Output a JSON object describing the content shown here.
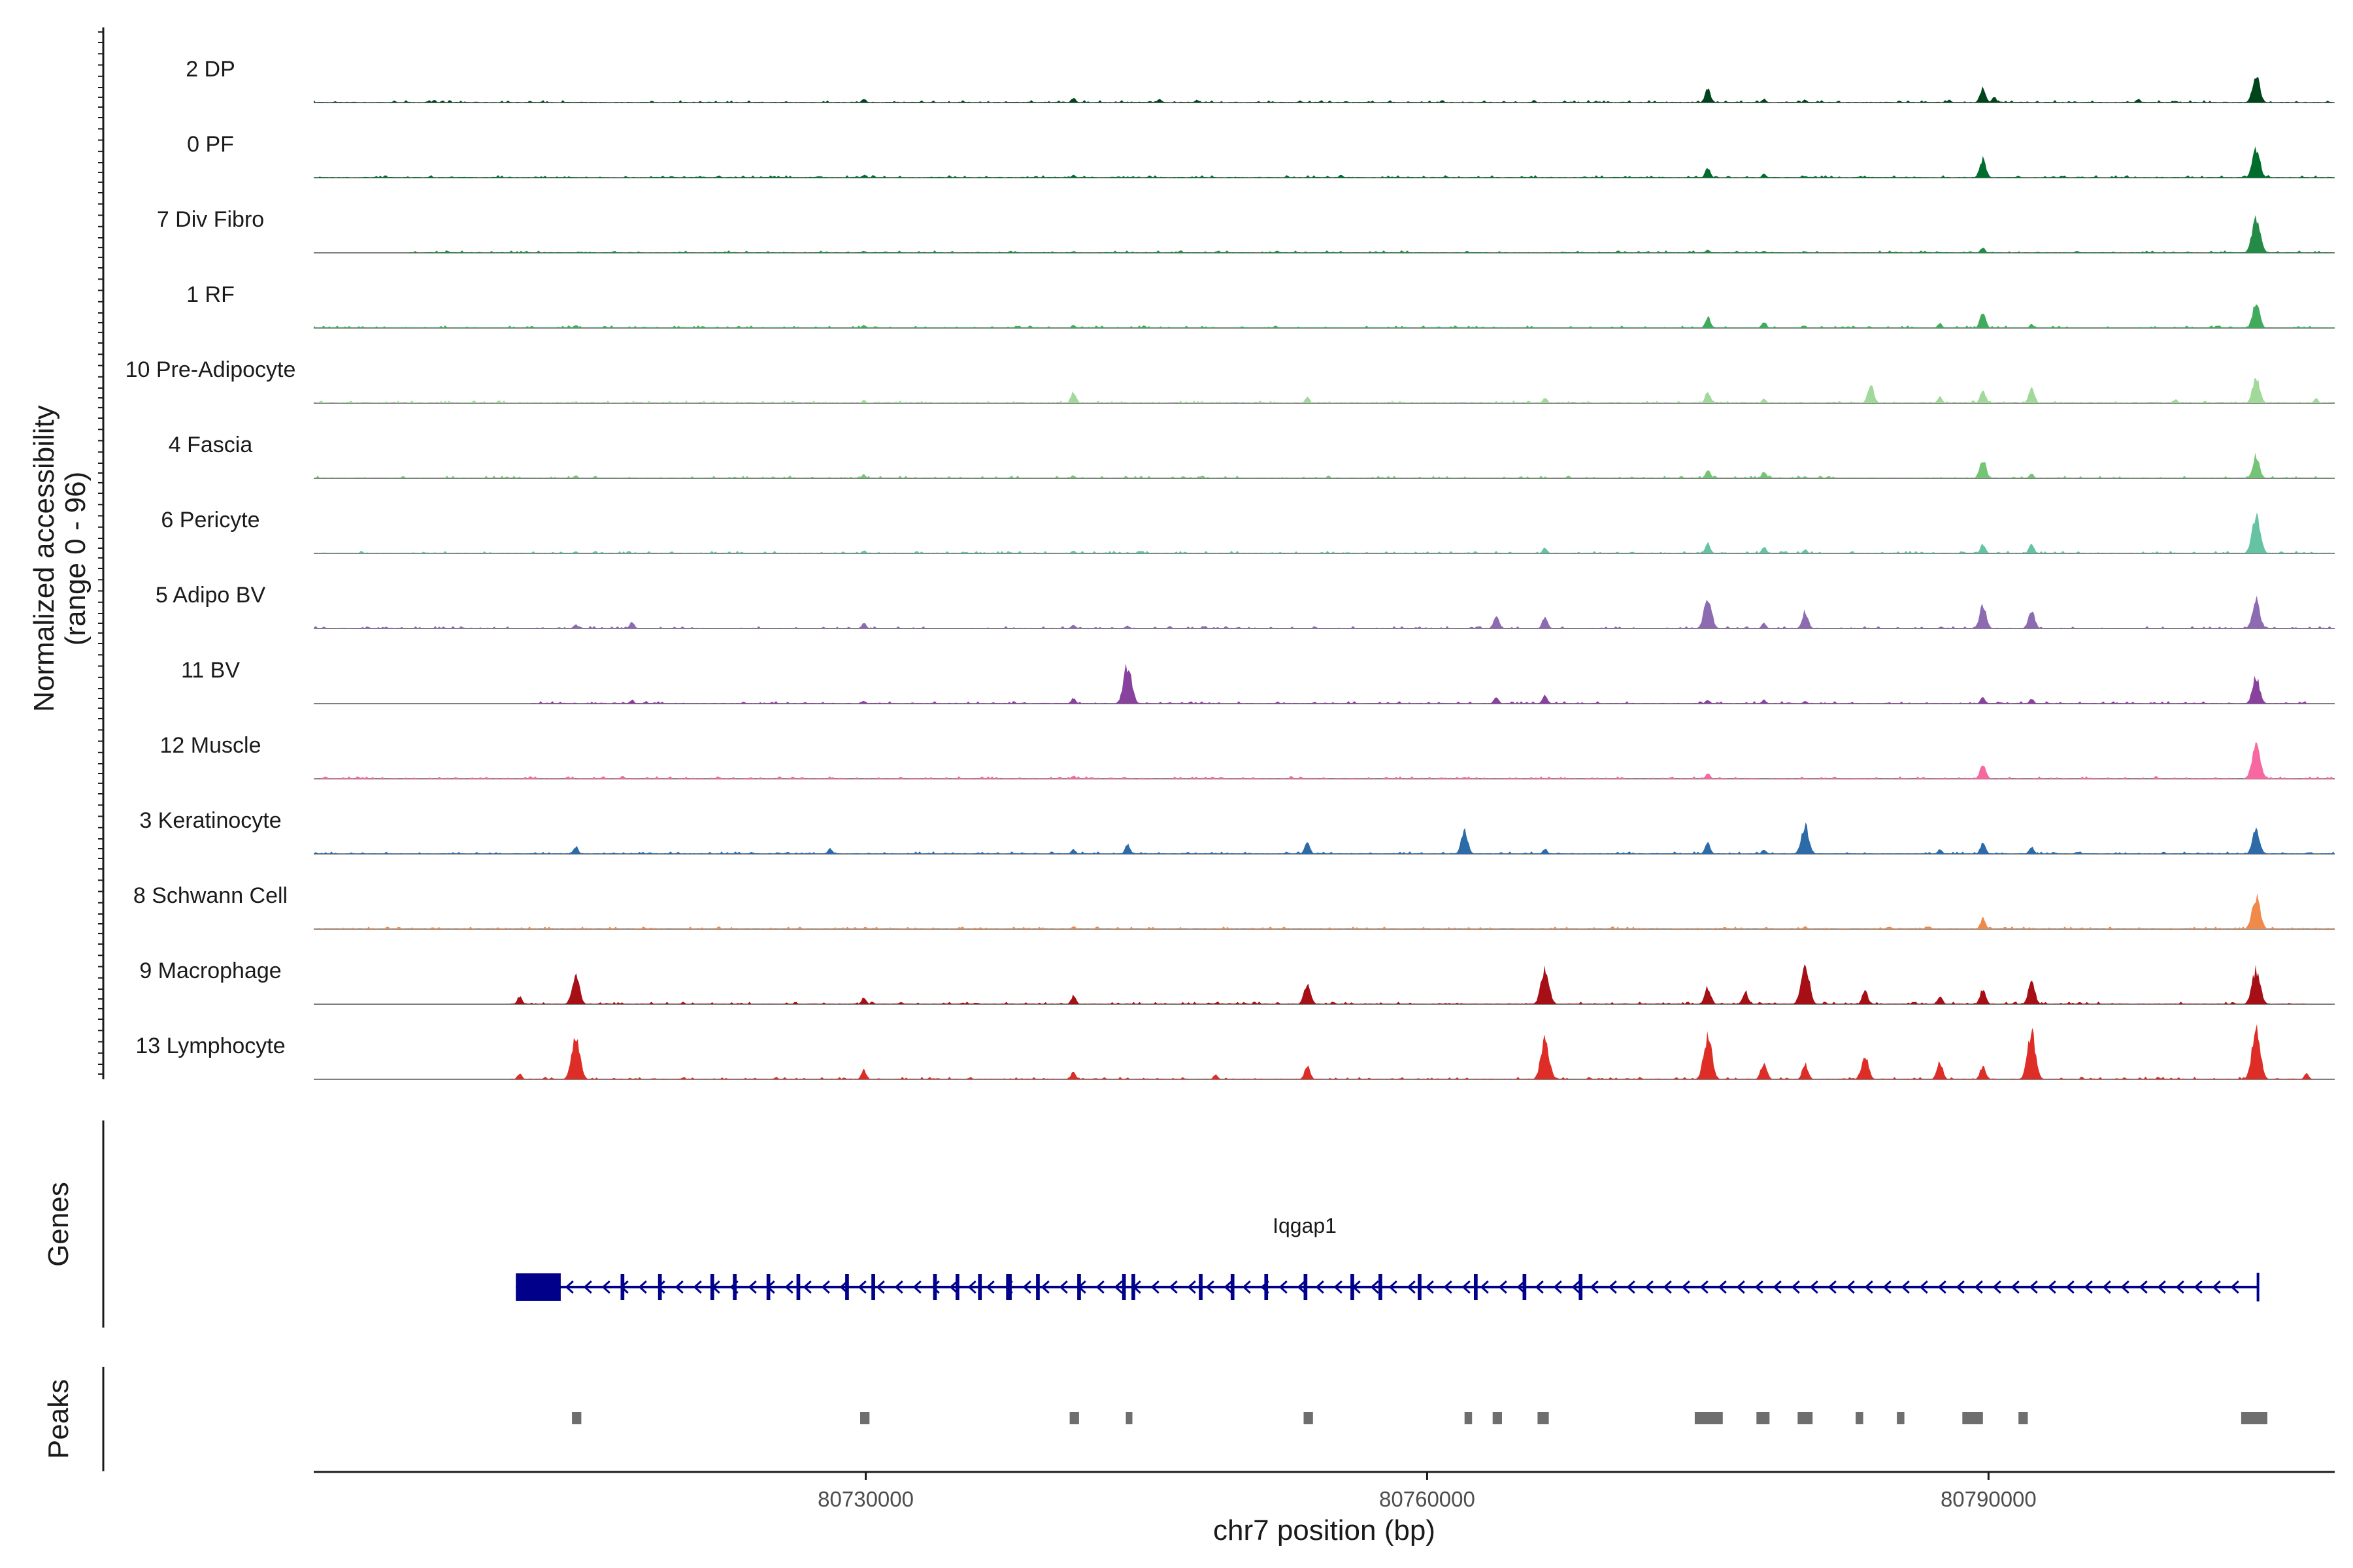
{
  "chart_data": {
    "type": "area",
    "title": "",
    "ylabel_line1": "Normalized accessibility",
    "ylabel_line2": "(range 0 - 96)",
    "ylim": [
      0,
      96
    ],
    "xlabel": "chr7 position (bp)",
    "xlim": [
      80700500,
      80808500
    ],
    "x_ticks": [
      80730000,
      80760000,
      80790000
    ],
    "x_tick_labels": [
      "80730000",
      "80760000",
      "80790000"
    ],
    "genes_label": "Genes",
    "peaks_label": "Peaks",
    "tracks": [
      {
        "name": "2 DP",
        "color": "#00441b",
        "start": 80700500,
        "end": 80808500,
        "peaks": [
          [
            80729900,
            4
          ],
          [
            80741100,
            5
          ],
          [
            80745700,
            4
          ],
          [
            80747700,
            3
          ],
          [
            80775000,
            14
          ],
          [
            80778000,
            4
          ],
          [
            80780200,
            3
          ],
          [
            80787900,
            3
          ],
          [
            80789700,
            16
          ],
          [
            80790300,
            6
          ],
          [
            80798000,
            4
          ],
          [
            80800000,
            2
          ],
          [
            80804300,
            28
          ]
        ]
      },
      {
        "name": "0 PF",
        "color": "#006d2c",
        "start": 80700500,
        "end": 80808500,
        "peaks": [
          [
            80729900,
            3
          ],
          [
            80741100,
            3
          ],
          [
            80755400,
            3
          ],
          [
            80775000,
            10
          ],
          [
            80778000,
            4
          ],
          [
            80780200,
            2
          ],
          [
            80789700,
            20
          ],
          [
            80804300,
            30
          ]
        ]
      },
      {
        "name": "7 Div Fibro",
        "color": "#238b45",
        "start": 80705600,
        "end": 80808500,
        "peaks": [
          [
            80729900,
            2
          ],
          [
            80741100,
            2
          ],
          [
            80755400,
            1
          ],
          [
            80775000,
            3
          ],
          [
            80778000,
            2
          ],
          [
            80789700,
            6
          ],
          [
            80804300,
            38
          ]
        ]
      },
      {
        "name": "1 RF",
        "color": "#41ab5d",
        "start": 80700500,
        "end": 80808500,
        "peaks": [
          [
            80714500,
            3
          ],
          [
            80729900,
            3
          ],
          [
            80741100,
            3
          ],
          [
            80775000,
            12
          ],
          [
            80778000,
            7
          ],
          [
            80787400,
            5
          ],
          [
            80789700,
            16
          ],
          [
            80792300,
            4
          ],
          [
            80804300,
            26
          ]
        ]
      },
      {
        "name": "10 Pre-Adipocyte",
        "color": "#a1d99b",
        "start": 80700500,
        "end": 80808500,
        "peaks": [
          [
            80714500,
            2
          ],
          [
            80729900,
            3
          ],
          [
            80741100,
            12
          ],
          [
            80753600,
            6
          ],
          [
            80766300,
            6
          ],
          [
            80775000,
            12
          ],
          [
            80778000,
            5
          ],
          [
            80783700,
            20
          ],
          [
            80787400,
            7
          ],
          [
            80789700,
            14
          ],
          [
            80792300,
            16
          ],
          [
            80800000,
            4
          ],
          [
            80804300,
            28
          ],
          [
            80807500,
            5
          ]
        ]
      },
      {
        "name": "4 Fascia",
        "color": "#74c476",
        "start": 80700500,
        "end": 80808500,
        "peaks": [
          [
            80714500,
            3
          ],
          [
            80729900,
            4
          ],
          [
            80741100,
            3
          ],
          [
            80775000,
            9
          ],
          [
            80778000,
            7
          ],
          [
            80780200,
            2
          ],
          [
            80789700,
            20
          ],
          [
            80792300,
            5
          ],
          [
            80804300,
            24
          ]
        ]
      },
      {
        "name": "6 Pericyte",
        "color": "#66c2a4",
        "start": 80700500,
        "end": 80808500,
        "peaks": [
          [
            80714500,
            2
          ],
          [
            80729900,
            3
          ],
          [
            80741100,
            3
          ],
          [
            80766300,
            6
          ],
          [
            80775000,
            11
          ],
          [
            80778000,
            7
          ],
          [
            80780200,
            4
          ],
          [
            80789700,
            10
          ],
          [
            80792300,
            10
          ],
          [
            80804300,
            40
          ]
        ]
      },
      {
        "name": "5 Adipo BV",
        "color": "#8c6bb1",
        "start": 80700500,
        "end": 80808500,
        "peaks": [
          [
            80714500,
            4
          ],
          [
            80717500,
            7
          ],
          [
            80729900,
            6
          ],
          [
            80741100,
            4
          ],
          [
            80744000,
            3
          ],
          [
            80763700,
            14
          ],
          [
            80766300,
            13
          ],
          [
            80775000,
            32
          ],
          [
            80778000,
            6
          ],
          [
            80780200,
            18
          ],
          [
            80789700,
            24
          ],
          [
            80792300,
            20
          ],
          [
            80804300,
            30
          ]
        ]
      },
      {
        "name": "11 BV",
        "color": "#88419d",
        "start": 80712000,
        "end": 80807000,
        "peaks": [
          [
            80717500,
            4
          ],
          [
            80729900,
            3
          ],
          [
            80741100,
            6
          ],
          [
            80744000,
            40
          ],
          [
            80763700,
            8
          ],
          [
            80766300,
            9
          ],
          [
            80775000,
            4
          ],
          [
            80778000,
            4
          ],
          [
            80780200,
            3
          ],
          [
            80789700,
            7
          ],
          [
            80792300,
            5
          ],
          [
            80804300,
            28
          ]
        ]
      },
      {
        "name": "12 Muscle",
        "color": "#f768a1",
        "start": 80700500,
        "end": 80808500,
        "peaks": [
          [
            80717000,
            3
          ],
          [
            80741100,
            3
          ],
          [
            80749000,
            2
          ],
          [
            80762000,
            2
          ],
          [
            80775000,
            6
          ],
          [
            80789700,
            16
          ],
          [
            80804300,
            38
          ]
        ]
      },
      {
        "name": "3 Keratinocyte",
        "color": "#2c6aa8",
        "start": 80700500,
        "end": 80808500,
        "peaks": [
          [
            80714500,
            8
          ],
          [
            80728100,
            6
          ],
          [
            80741100,
            5
          ],
          [
            80744000,
            10
          ],
          [
            80753600,
            12
          ],
          [
            80762000,
            24
          ],
          [
            80766300,
            6
          ],
          [
            80775000,
            12
          ],
          [
            80778000,
            5
          ],
          [
            80780200,
            30
          ],
          [
            80787400,
            5
          ],
          [
            80789700,
            12
          ],
          [
            80792300,
            8
          ],
          [
            80804300,
            26
          ]
        ]
      },
      {
        "name": "8 Schwann Cell",
        "color": "#f08a4b",
        "start": 80700500,
        "end": 80808500,
        "peaks": [
          [
            80741100,
            3
          ],
          [
            80780200,
            3
          ],
          [
            80789700,
            11
          ],
          [
            80804300,
            34
          ]
        ]
      },
      {
        "name": "9 Macrophage",
        "color": "#a50f15",
        "start": 80711000,
        "end": 80807000,
        "peaks": [
          [
            80711500,
            8
          ],
          [
            80714500,
            30
          ],
          [
            80729900,
            7
          ],
          [
            80741100,
            9
          ],
          [
            80753600,
            22
          ],
          [
            80766300,
            36
          ],
          [
            80775000,
            18
          ],
          [
            80777000,
            14
          ],
          [
            80780200,
            44
          ],
          [
            80783400,
            14
          ],
          [
            80787400,
            9
          ],
          [
            80789700,
            16
          ],
          [
            80792300,
            24
          ],
          [
            80804300,
            36
          ]
        ]
      },
      {
        "name": "13 Lymphocyte",
        "color": "#de2d26",
        "start": 80711000,
        "end": 80807000,
        "peaks": [
          [
            80711500,
            6
          ],
          [
            80714500,
            48
          ],
          [
            80729900,
            10
          ],
          [
            80741100,
            8
          ],
          [
            80748700,
            5
          ],
          [
            80753600,
            14
          ],
          [
            80766300,
            42
          ],
          [
            80775000,
            46
          ],
          [
            80778000,
            18
          ],
          [
            80780200,
            16
          ],
          [
            80783400,
            26
          ],
          [
            80787400,
            18
          ],
          [
            80789700,
            14
          ],
          [
            80792300,
            48
          ],
          [
            80804300,
            54
          ],
          [
            80807000,
            6
          ]
        ]
      }
    ],
    "gene": {
      "name": "Iqgap1",
      "strand": "-",
      "start": 80711300,
      "end": 80804400,
      "exons": [
        [
          80711300,
          80713700
        ],
        [
          80716900,
          80717100
        ],
        [
          80718900,
          80719100
        ],
        [
          80721700,
          80721900
        ],
        [
          80722900,
          80723100
        ],
        [
          80724700,
          80724900
        ],
        [
          80726300,
          80726500
        ],
        [
          80728900,
          80729100
        ],
        [
          80730300,
          80730500
        ],
        [
          80733600,
          80733800
        ],
        [
          80734800,
          80735000
        ],
        [
          80736000,
          80736200
        ],
        [
          80737500,
          80737800
        ],
        [
          80739100,
          80739300
        ],
        [
          80741300,
          80741500
        ],
        [
          80743700,
          80743900
        ],
        [
          80744200,
          80744400
        ],
        [
          80747800,
          80748000
        ],
        [
          80749500,
          80749700
        ],
        [
          80751300,
          80751500
        ],
        [
          80753400,
          80753600
        ],
        [
          80755900,
          80756100
        ],
        [
          80757400,
          80757600
        ],
        [
          80759500,
          80759700
        ],
        [
          80762500,
          80762700
        ],
        [
          80765100,
          80765300
        ],
        [
          80768100,
          80768300
        ]
      ]
    },
    "peak_regions": [
      [
        80714300,
        80714800
      ],
      [
        80729700,
        80730200
      ],
      [
        80740900,
        80741400
      ],
      [
        80743900,
        80744200
      ],
      [
        80753400,
        80753900
      ],
      [
        80762000,
        80762400
      ],
      [
        80763500,
        80764000
      ],
      [
        80765900,
        80766500
      ],
      [
        80774300,
        80775800
      ],
      [
        80777600,
        80778300
      ],
      [
        80779800,
        80780600
      ],
      [
        80782900,
        80783300
      ],
      [
        80785100,
        80785500
      ],
      [
        80788600,
        80789700
      ],
      [
        80791600,
        80792100
      ],
      [
        80803500,
        80804900
      ]
    ]
  }
}
